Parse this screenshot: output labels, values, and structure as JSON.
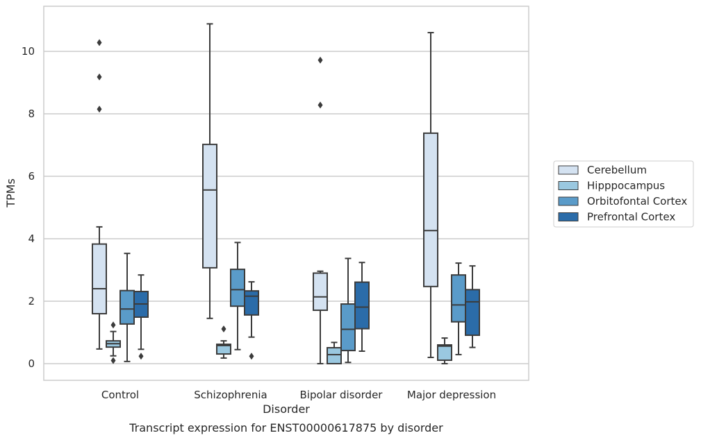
{
  "chart_data": {
    "type": "box",
    "caption": "Transcript expression for ENST00000617875 by disorder",
    "xlabel": "Disorder",
    "ylabel": "TPMs",
    "ylim": [
      -0.5,
      11.5
    ],
    "yticks": [
      0,
      2,
      4,
      6,
      8,
      10
    ],
    "grid": "horizontal",
    "legend_position": "right",
    "categories": [
      "Control",
      "Schizophrenia",
      "Bipolar disorder",
      "Major depression"
    ],
    "series": [
      {
        "name": "Cerebellum",
        "color": "#d4e2f1",
        "boxes": [
          {
            "whisker_low": 0.47,
            "q1": 1.6,
            "median": 2.4,
            "q3": 3.83,
            "whisker_high": 4.38,
            "outliers": [
              8.15,
              9.18,
              10.28
            ]
          },
          {
            "whisker_low": 1.45,
            "q1": 3.07,
            "median": 5.56,
            "q3": 7.02,
            "whisker_high": 10.88,
            "outliers": []
          },
          {
            "whisker_low": 0.0,
            "q1": 1.71,
            "median": 2.14,
            "q3": 2.9,
            "whisker_high": 2.96,
            "outliers": [
              8.28,
              9.72
            ]
          },
          {
            "whisker_low": 0.2,
            "q1": 2.47,
            "median": 4.26,
            "q3": 7.38,
            "whisker_high": 10.6,
            "outliers": []
          }
        ]
      },
      {
        "name": "Hipppocampus",
        "color": "#9ac8e0",
        "boxes": [
          {
            "whisker_low": 0.25,
            "q1": 0.53,
            "median": 0.64,
            "q3": 0.73,
            "whisker_high": 1.03,
            "outliers": [
              0.1,
              1.24
            ]
          },
          {
            "whisker_low": 0.18,
            "q1": 0.31,
            "median": 0.58,
            "q3": 0.62,
            "whisker_high": 0.73,
            "outliers": [
              1.11
            ]
          },
          {
            "whisker_low": 0.0,
            "q1": 0.0,
            "median": 0.29,
            "q3": 0.51,
            "whisker_high": 0.68,
            "outliers": []
          },
          {
            "whisker_low": 0.0,
            "q1": 0.11,
            "median": 0.56,
            "q3": 0.6,
            "whisker_high": 0.82,
            "outliers": []
          }
        ]
      },
      {
        "name": "Orbitofontal Cortex",
        "color": "#5a9bc9",
        "boxes": [
          {
            "whisker_low": 0.07,
            "q1": 1.27,
            "median": 1.75,
            "q3": 2.34,
            "whisker_high": 3.53,
            "outliers": []
          },
          {
            "whisker_low": 0.45,
            "q1": 1.84,
            "median": 2.37,
            "q3": 3.02,
            "whisker_high": 3.88,
            "outliers": []
          },
          {
            "whisker_low": 0.04,
            "q1": 0.42,
            "median": 1.1,
            "q3": 1.91,
            "whisker_high": 3.37,
            "outliers": []
          },
          {
            "whisker_low": 0.29,
            "q1": 1.34,
            "median": 1.88,
            "q3": 2.84,
            "whisker_high": 3.22,
            "outliers": []
          }
        ]
      },
      {
        "name": "Prefrontal Cortex",
        "color": "#2b6ca9",
        "boxes": [
          {
            "whisker_low": 0.46,
            "q1": 1.49,
            "median": 1.91,
            "q3": 2.31,
            "whisker_high": 2.84,
            "outliers": [
              0.24
            ]
          },
          {
            "whisker_low": 0.85,
            "q1": 1.56,
            "median": 2.16,
            "q3": 2.33,
            "whisker_high": 2.62,
            "outliers": [
              0.24
            ]
          },
          {
            "whisker_low": 0.4,
            "q1": 1.12,
            "median": 1.81,
            "q3": 2.61,
            "whisker_high": 3.24,
            "outliers": []
          },
          {
            "whisker_low": 0.52,
            "q1": 0.91,
            "median": 1.98,
            "q3": 2.37,
            "whisker_high": 3.13,
            "outliers": []
          }
        ]
      }
    ]
  }
}
